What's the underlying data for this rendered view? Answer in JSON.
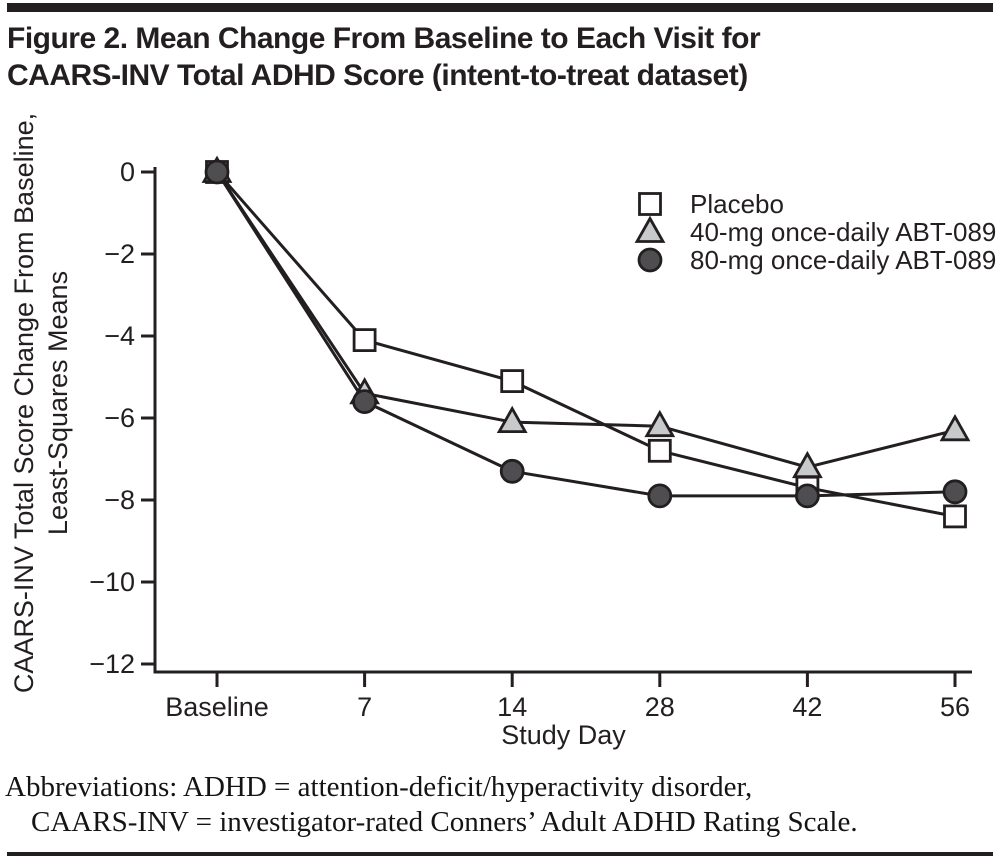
{
  "page": {
    "title_line1": "Figure 2. Mean Change From Baseline to Each Visit for",
    "title_line2": "CAARS-INV Total ADHD Score (intent-to-treat dataset)",
    "footnote_line1": "Abbreviations: ADHD = attention-deficit/hyperactivity disorder,",
    "footnote_line2": "CAARS-INV = investigator-rated Conners’ Adult ADHD Rating Scale."
  },
  "colors": {
    "ink": "#231f20",
    "line": "#231f20",
    "placebo_marker_fill": "#ffffff",
    "abt40_marker_fill": "#c8c9cb",
    "abt80_marker_fill": "#4e4e50",
    "background": "#ffffff"
  },
  "chart_data": {
    "type": "line",
    "categories": [
      "Baseline",
      "7",
      "14",
      "28",
      "42",
      "56"
    ],
    "xlabel": "Study Day",
    "ylabel_line1": "CAARS-INV Total Score Change From Baseline,",
    "ylabel_line2": "Least-Squares Means",
    "ylim": [
      -12,
      0
    ],
    "y_ticks": [
      0,
      -2,
      -4,
      -6,
      -8,
      -10,
      -12
    ],
    "grid": false,
    "legend_position": "upper-right-inside",
    "series": [
      {
        "name": "Placebo",
        "marker": "square",
        "marker_fill": "#ffffff",
        "values": [
          0,
          -4.1,
          -5.1,
          -6.8,
          -7.7,
          -8.4
        ]
      },
      {
        "name": "40-mg once-daily ABT-089",
        "marker": "triangle",
        "marker_fill": "#c8c9cb",
        "values": [
          0,
          -5.4,
          -6.1,
          -6.2,
          -7.2,
          -6.3
        ]
      },
      {
        "name": "80-mg once-daily ABT-089",
        "marker": "circle",
        "marker_fill": "#4e4e50",
        "values": [
          0,
          -5.6,
          -7.3,
          -7.9,
          -7.9,
          -7.8
        ]
      }
    ]
  }
}
